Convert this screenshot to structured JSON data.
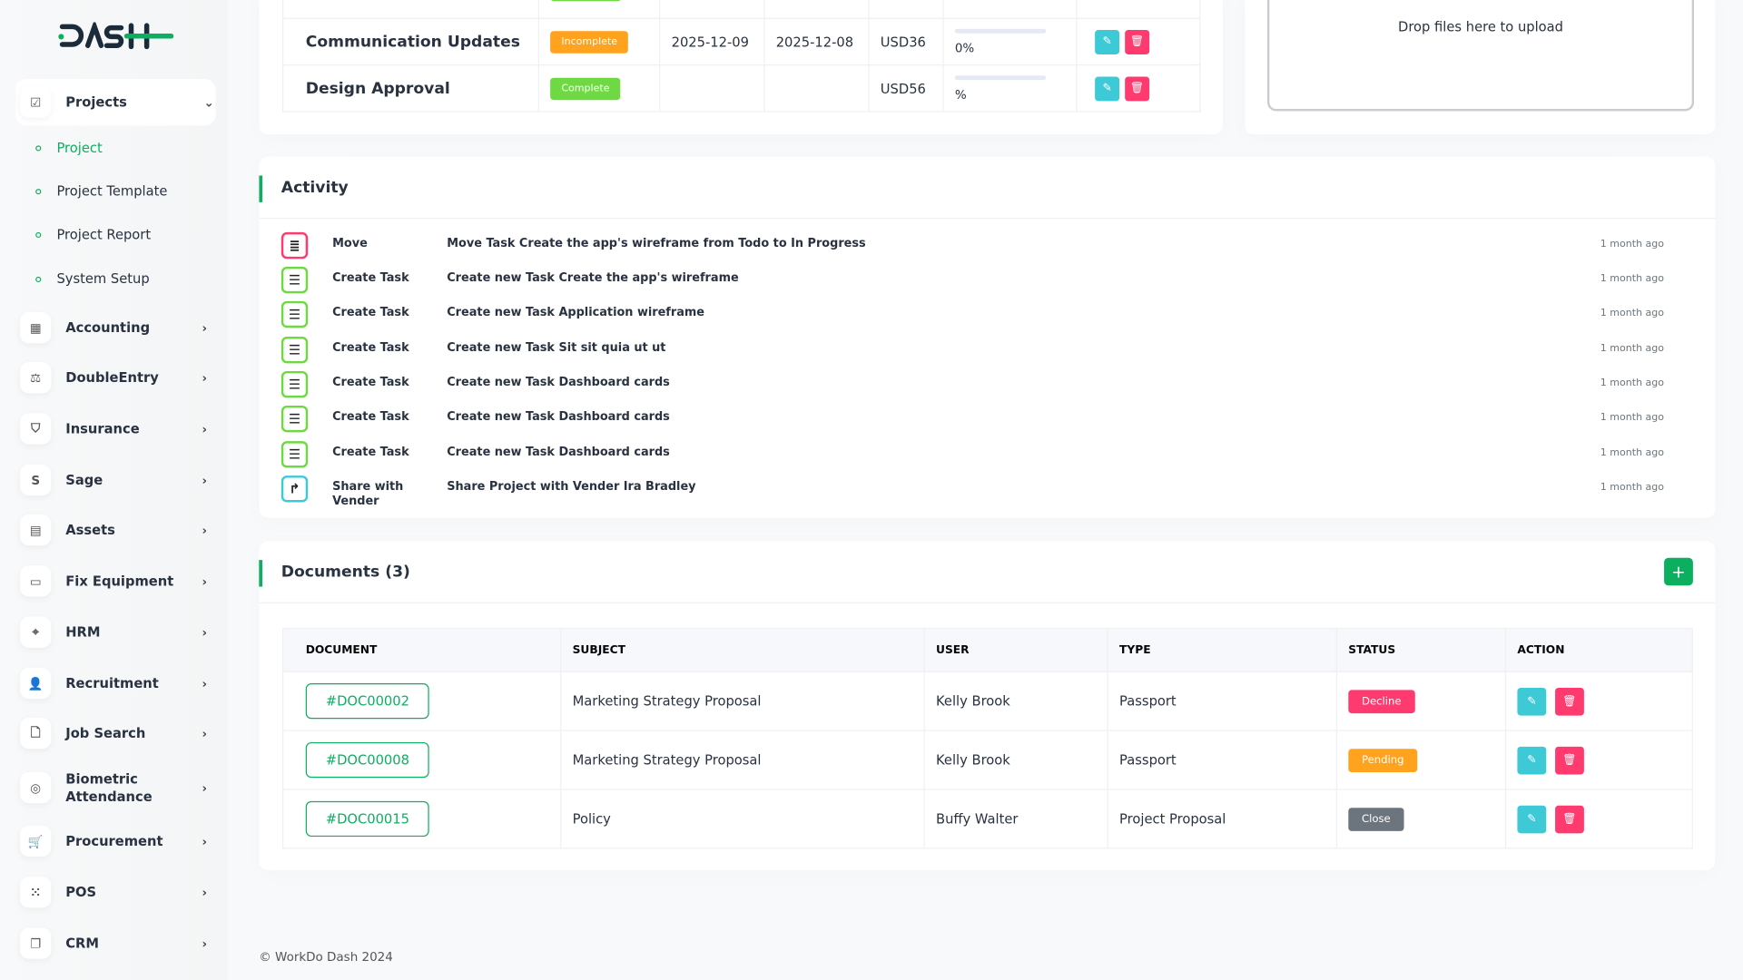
{
  "brand": {
    "logo": "DASH",
    "accent": "#0caf60"
  },
  "sidebar": {
    "projects": {
      "label": "Projects",
      "sub": [
        {
          "label": "Project",
          "active": true
        },
        {
          "label": "Project Template"
        },
        {
          "label": "Project Report"
        },
        {
          "label": "System Setup"
        }
      ]
    },
    "items": [
      {
        "label": "Accounting",
        "icon": "grid-icon"
      },
      {
        "label": "DoubleEntry",
        "icon": "scale-icon"
      },
      {
        "label": "Insurance",
        "icon": "shield-icon"
      },
      {
        "label": "Sage",
        "icon": "s-icon"
      },
      {
        "label": "Assets",
        "icon": "calculator-icon"
      },
      {
        "label": "Fix Equipment",
        "icon": "archive-icon"
      },
      {
        "label": "HRM",
        "icon": "focus-icon"
      },
      {
        "label": "Recruitment",
        "icon": "user-plus-icon"
      },
      {
        "label": "Job Search",
        "icon": "file-search-icon"
      },
      {
        "label": "Biometric Attendance",
        "icon": "fingerprint-icon"
      },
      {
        "label": "Procurement",
        "icon": "cart-icon"
      },
      {
        "label": "POS",
        "icon": "grid-dots-icon"
      },
      {
        "label": "CRM",
        "icon": "layers-icon"
      }
    ]
  },
  "milestones": {
    "rows": [
      {
        "name": "Communication Updates",
        "status": "Incomplete",
        "status_color": "#ffa21d",
        "start": "2025-12-09",
        "end": "2025-12-08",
        "cost": "USD36",
        "progress": "0%"
      },
      {
        "name": "Design Approval",
        "status": "Complete",
        "status_color": "#6fd943",
        "start": "",
        "end": "",
        "cost": "USD56",
        "progress": "%"
      }
    ]
  },
  "upload": {
    "text": "Drop files here to upload"
  },
  "activity": {
    "title": "Activity",
    "items": [
      {
        "type": "Move",
        "desc": "Move Task Create the app's wireframe from Todo to In Progress",
        "time": "1 month ago",
        "icon": "list-icon"
      },
      {
        "type": "Create Task",
        "desc": "Create new Task Create the app's wireframe",
        "time": "1 month ago",
        "icon": "checklist-icon"
      },
      {
        "type": "Create Task",
        "desc": "Create new Task Application wireframe",
        "time": "1 month ago",
        "icon": "checklist-icon"
      },
      {
        "type": "Create Task",
        "desc": "Create new Task Sit sit quia ut ut",
        "time": "1 month ago",
        "icon": "checklist-icon"
      },
      {
        "type": "Create Task",
        "desc": "Create new Task Dashboard cards",
        "time": "1 month ago",
        "icon": "checklist-icon"
      },
      {
        "type": "Create Task",
        "desc": "Create new Task Dashboard cards",
        "time": "1 month ago",
        "icon": "checklist-icon"
      },
      {
        "type": "Create Task",
        "desc": "Create new Task Dashboard cards",
        "time": "1 month ago",
        "icon": "checklist-icon"
      },
      {
        "type": "Share with Vender",
        "desc": "Share Project with Vender Ira Bradley",
        "time": "1 month ago",
        "icon": "share-icon"
      }
    ]
  },
  "documents": {
    "title": "Documents (3)",
    "add": "+",
    "headers": [
      "DOCUMENT",
      "SUBJECT",
      "USER",
      "TYPE",
      "STATUS",
      "ACTION"
    ],
    "rows": [
      {
        "doc": "#DOC00002",
        "subject": "Marketing Strategy Proposal",
        "user": "Kelly Brook",
        "type": "Passport",
        "status": "Decline",
        "status_color": "#ff3a6e"
      },
      {
        "doc": "#DOC00008",
        "subject": "Marketing Strategy Proposal",
        "user": "Kelly Brook",
        "type": "Passport",
        "status": "Pending",
        "status_color": "#ffa21d"
      },
      {
        "doc": "#DOC00015",
        "subject": "Policy",
        "user": "Buffy Walter",
        "type": "Project Proposal",
        "status": "Close",
        "status_color": "#6c757d"
      }
    ]
  },
  "footer": "© WorkDo Dash 2024"
}
